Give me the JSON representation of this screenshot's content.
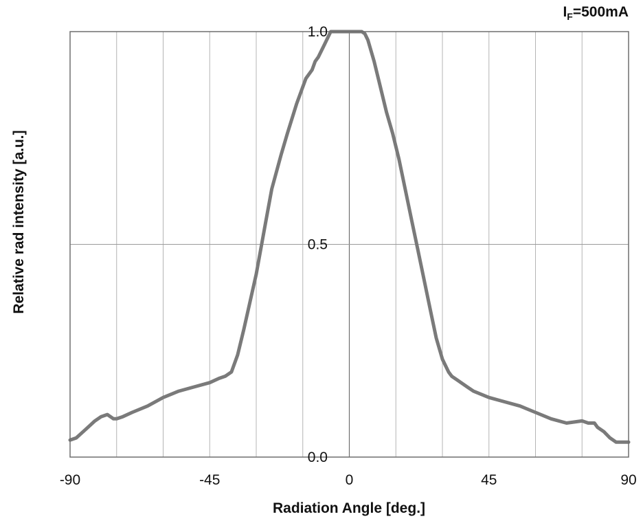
{
  "chart_data": {
    "type": "line",
    "condition_label": {
      "main": "I",
      "sub": "F",
      "rest": "=500mA"
    },
    "xlabel": "Radiation Angle [deg.]",
    "ylabel": "Relative rad intensity [a.u.]",
    "xlim": [
      -90,
      90
    ],
    "ylim": [
      0,
      1.0
    ],
    "x_ticks": [
      "-90",
      "-45",
      "0",
      "45",
      "90"
    ],
    "y_ticks": [
      "0.0",
      "0.5",
      "1.0"
    ],
    "grid_x_step": 15,
    "grid": true,
    "line_color": "#7a7a7a",
    "series": [
      {
        "x": [
          -90,
          -88,
          -85,
          -82,
          -80,
          -78,
          -76,
          -75,
          -73,
          -70,
          -65,
          -60,
          -55,
          -50,
          -45,
          -42,
          -40,
          -38,
          -36,
          -34,
          -30,
          -27,
          -25,
          -22,
          -20,
          -17,
          -14,
          -12,
          -11,
          -10,
          -8,
          -6,
          -4,
          -3,
          -2,
          0,
          2,
          4,
          5,
          6,
          8,
          10,
          12,
          14,
          16,
          18,
          20,
          22,
          24,
          26,
          28,
          30,
          32,
          33,
          35,
          38,
          40,
          45,
          50,
          55,
          60,
          65,
          70,
          75,
          77,
          79,
          80,
          82,
          84,
          86,
          88,
          90
        ],
        "y": [
          0.04,
          0.045,
          0.065,
          0.085,
          0.095,
          0.1,
          0.09,
          0.09,
          0.095,
          0.105,
          0.12,
          0.14,
          0.155,
          0.165,
          0.175,
          0.185,
          0.19,
          0.2,
          0.24,
          0.3,
          0.43,
          0.55,
          0.63,
          0.71,
          0.76,
          0.83,
          0.89,
          0.91,
          0.93,
          0.94,
          0.97,
          1.0,
          1.0,
          1.0,
          1.0,
          1.0,
          1.0,
          1.0,
          0.995,
          0.98,
          0.93,
          0.87,
          0.81,
          0.76,
          0.7,
          0.63,
          0.56,
          0.49,
          0.42,
          0.35,
          0.28,
          0.23,
          0.2,
          0.19,
          0.18,
          0.165,
          0.155,
          0.14,
          0.13,
          0.12,
          0.105,
          0.09,
          0.08,
          0.085,
          0.08,
          0.08,
          0.07,
          0.06,
          0.045,
          0.035,
          0.035,
          0.035
        ]
      }
    ]
  }
}
